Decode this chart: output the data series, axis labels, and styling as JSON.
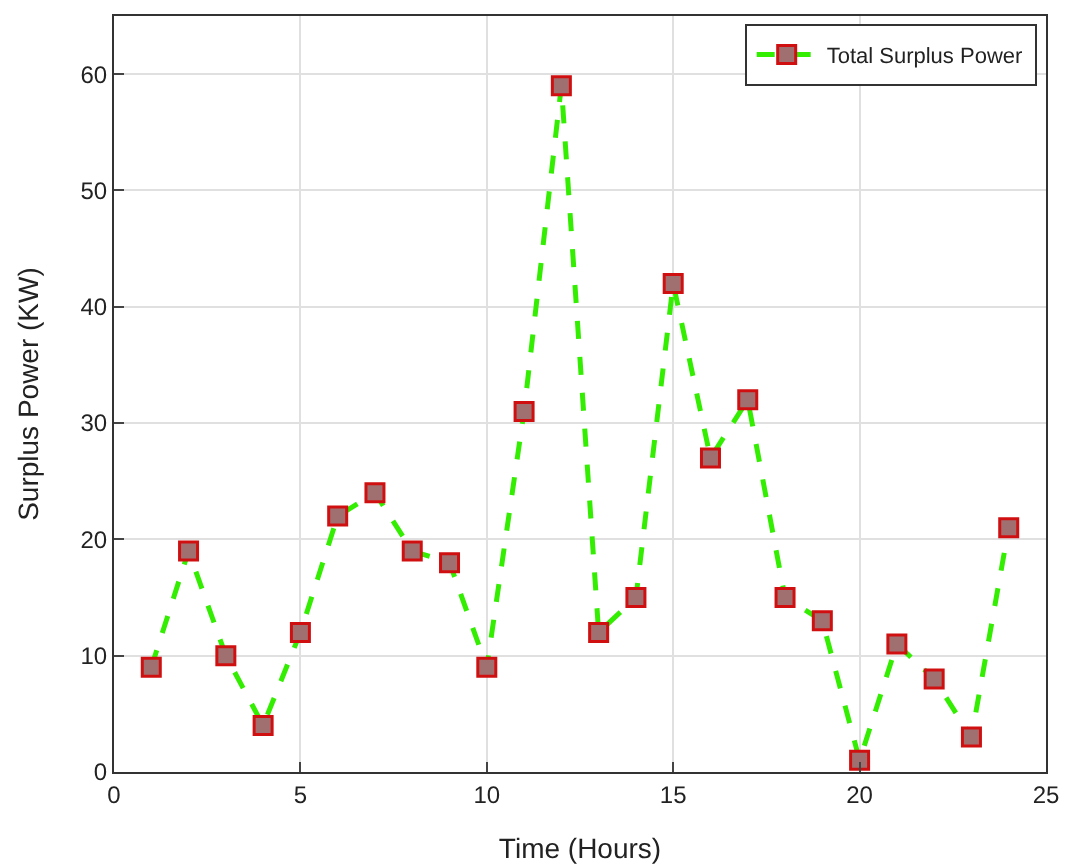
{
  "chart_data": {
    "type": "line",
    "xlabel": "Time (Hours)",
    "ylabel": "Surplus Power (KW)",
    "x": [
      1,
      2,
      3,
      4,
      5,
      6,
      7,
      8,
      9,
      10,
      11,
      12,
      13,
      14,
      15,
      16,
      17,
      18,
      19,
      20,
      21,
      22,
      23,
      24
    ],
    "series": [
      {
        "name": "Total Surplus Power",
        "color": "#33ee00",
        "values": [
          9,
          19,
          10,
          4,
          12,
          22,
          24,
          19,
          18,
          9,
          31,
          59,
          12,
          15,
          42,
          27,
          32,
          15,
          13,
          1,
          11,
          8,
          3,
          21
        ]
      }
    ],
    "xlim": [
      0,
      25
    ],
    "xticks": [
      0,
      5,
      10,
      15,
      20,
      25
    ],
    "ylim": [
      0,
      65
    ],
    "yticks": [
      0,
      10,
      20,
      30,
      40,
      50,
      60
    ],
    "grid": true,
    "legend": "top right",
    "marker": "square",
    "line_style": "dashed"
  }
}
